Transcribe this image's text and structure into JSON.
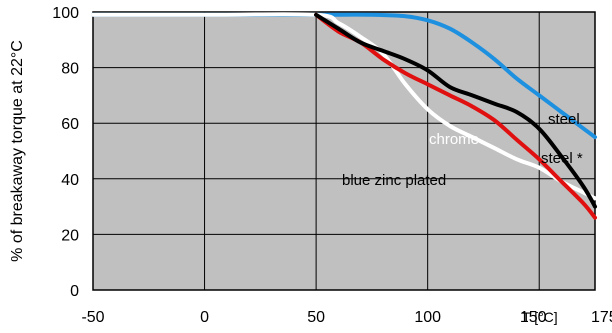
{
  "chart_data": {
    "type": "line",
    "title": "",
    "ylabel": "% of breakaway torque at 22°C",
    "xlabel": "T [°C]",
    "xlim": [
      -50,
      175
    ],
    "ylim": [
      0,
      100
    ],
    "x_ticks": [
      -50,
      0,
      50,
      100,
      150,
      175
    ],
    "y_ticks": [
      0,
      20,
      40,
      60,
      80,
      100
    ],
    "grid": true,
    "plot_background": "#c0c0c0",
    "series": [
      {
        "name": "steel",
        "color": "#1e90e0",
        "x": [
          -50,
          0,
          50,
          75,
          90,
          100,
          110,
          120,
          130,
          140,
          150,
          160,
          170,
          175
        ],
        "y": [
          99,
          99,
          99,
          99,
          98.5,
          97,
          94,
          89,
          83,
          76,
          70,
          64,
          58,
          55
        ]
      },
      {
        "name": "steel *",
        "color": "#000000",
        "x": [
          50,
          60,
          70,
          80,
          90,
          100,
          110,
          120,
          130,
          140,
          150,
          160,
          170,
          175
        ],
        "y": [
          99,
          94,
          89,
          86,
          83,
          79,
          73,
          70,
          67,
          64,
          58,
          48,
          37,
          30
        ]
      },
      {
        "name": "chrome",
        "color": "#e01010",
        "x": [
          50,
          60,
          70,
          80,
          90,
          100,
          110,
          120,
          130,
          140,
          150,
          160,
          170,
          175
        ],
        "y": [
          99,
          93,
          89,
          83,
          78,
          74,
          70,
          66,
          61,
          54,
          47,
          39,
          31,
          26
        ]
      },
      {
        "name": "blue zinc plated",
        "color": "#ffffff",
        "x": [
          -50,
          0,
          50,
          60,
          70,
          80,
          90,
          100,
          110,
          120,
          130,
          140,
          150,
          160,
          170,
          175
        ],
        "y": [
          99,
          99,
          99,
          96,
          91,
          85,
          74,
          65,
          59,
          55,
          51,
          47,
          44,
          39,
          35,
          33
        ]
      }
    ],
    "annotations": [
      {
        "text": "steel",
        "series": "steel"
      },
      {
        "text": "chrome",
        "series": "chrome"
      },
      {
        "text": "steel *",
        "series": "steel *"
      },
      {
        "text": "blue zinc plated",
        "series": "blue zinc plated"
      }
    ]
  }
}
